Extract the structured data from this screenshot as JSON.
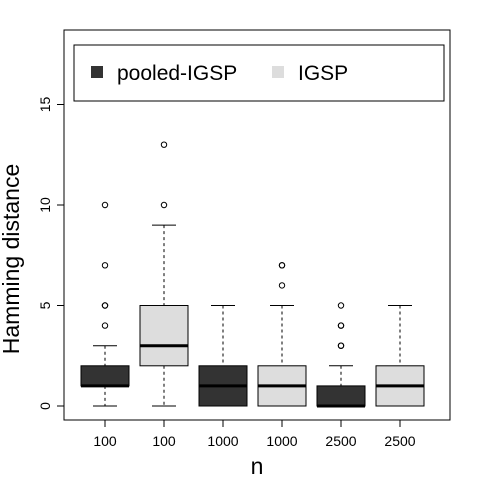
{
  "chart_data": {
    "type": "boxplot",
    "title": "",
    "xlabel": "n",
    "ylabel": "Hamming distance",
    "ylim": [
      0,
      18
    ],
    "yticks": [
      0,
      5,
      10,
      15
    ],
    "ytick_labels": [
      "0",
      "5",
      "10",
      "15"
    ],
    "grid": false,
    "legend_position": "top",
    "categories": [
      "100",
      "100",
      "1000",
      "1000",
      "2500",
      "2500"
    ],
    "series": [
      {
        "name": "pooled-IGSP",
        "color": "#333333",
        "boxes": [
          {
            "category": "100",
            "whisker_low": 0,
            "q1": 1,
            "median": 1,
            "q3": 2,
            "whisker_high": 3,
            "outliers": [
              4,
              5,
              5,
              7,
              10
            ]
          },
          {
            "category": "1000",
            "whisker_low": 0,
            "q1": 0,
            "median": 1,
            "q3": 2,
            "whisker_high": 5,
            "outliers": []
          },
          {
            "category": "2500",
            "whisker_low": 0,
            "q1": 0,
            "median": 0,
            "q3": 1,
            "whisker_high": 2,
            "outliers": [
              3,
              3,
              4,
              4,
              5
            ]
          }
        ]
      },
      {
        "name": "IGSP",
        "color": "#dddddd",
        "boxes": [
          {
            "category": "100",
            "whisker_low": 0,
            "q1": 2,
            "median": 3,
            "q3": 5,
            "whisker_high": 9,
            "outliers": [
              10,
              13
            ]
          },
          {
            "category": "1000",
            "whisker_low": 0,
            "q1": 0,
            "median": 1,
            "q3": 2,
            "whisker_high": 5,
            "outliers": [
              6,
              7,
              7
            ]
          },
          {
            "category": "2500",
            "whisker_low": 0,
            "q1": 0,
            "median": 1,
            "q3": 2,
            "whisker_high": 5,
            "outliers": []
          }
        ]
      }
    ],
    "box_order": [
      {
        "series": 0,
        "box": 0
      },
      {
        "series": 1,
        "box": 0
      },
      {
        "series": 0,
        "box": 1
      },
      {
        "series": 1,
        "box": 1
      },
      {
        "series": 0,
        "box": 2
      },
      {
        "series": 1,
        "box": 2
      }
    ]
  }
}
